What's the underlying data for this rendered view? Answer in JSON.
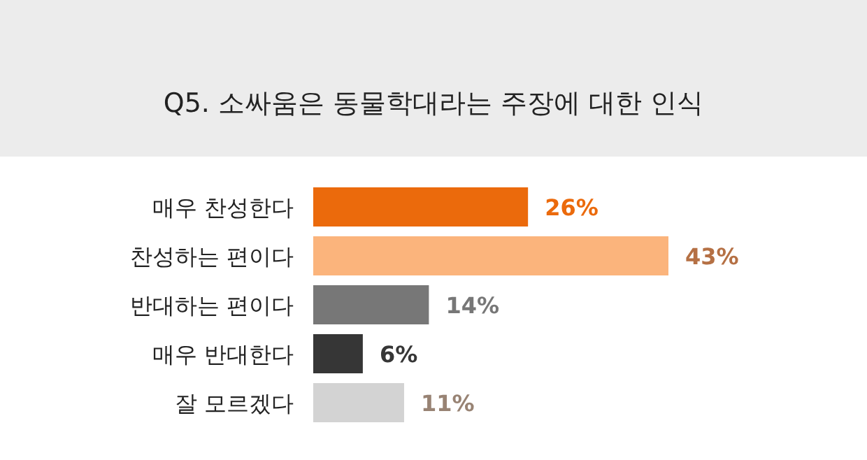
{
  "chart_data": {
    "type": "bar",
    "orientation": "horizontal",
    "title": "Q5. 소싸움은 동물학대라는 주장에 대한 인식",
    "categories": [
      "매우 찬성한다",
      "찬성하는 편이다",
      "반대하는 편이다",
      "매우 반대한다",
      "잘 모르겠다"
    ],
    "values": [
      26,
      43,
      14,
      6,
      11
    ],
    "colors": [
      "#eb6a0c",
      "#fbb47c",
      "#777777",
      "#363636",
      "#d3d3d3"
    ],
    "value_labels": [
      "26%",
      "43%",
      "14%",
      "6%",
      "11%"
    ]
  }
}
